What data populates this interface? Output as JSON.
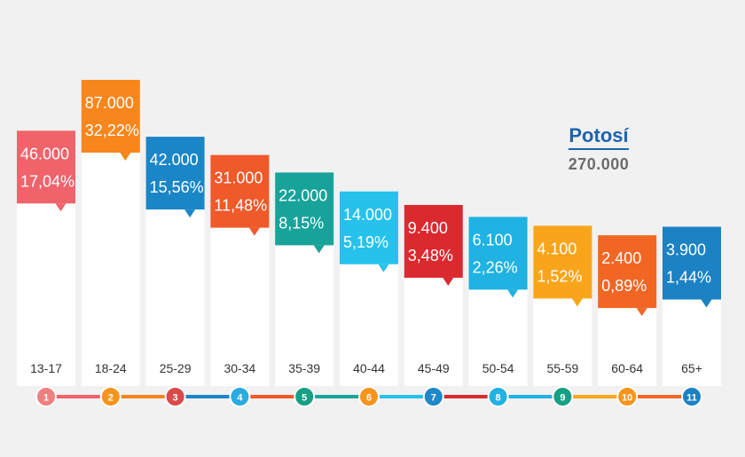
{
  "header": {
    "region": "Potosí",
    "total": "270.000"
  },
  "chart_data": {
    "type": "bar",
    "categories": [
      "13-17",
      "18-24",
      "25-29",
      "30-34",
      "35-39",
      "40-44",
      "45-49",
      "50-54",
      "55-59",
      "60-64",
      "65+"
    ],
    "values": [
      46000,
      87000,
      42000,
      31000,
      22000,
      14000,
      9400,
      6100,
      4100,
      2400,
      3900
    ],
    "value_labels": [
      "46.000",
      "87.000",
      "42.000",
      "31.000",
      "22.000",
      "14.000",
      "9.400",
      "6.100",
      "4.100",
      "2.400",
      "3.900"
    ],
    "percent_labels": [
      "17,04%",
      "32,22%",
      "15,56%",
      "11,48%",
      "8,15%",
      "5,19%",
      "3,48%",
      "2,26%",
      "1,52%",
      "0,89%",
      "1,44%"
    ],
    "step_numbers": [
      "1",
      "2",
      "3",
      "4",
      "5",
      "6",
      "7",
      "8",
      "9",
      "10",
      "11"
    ],
    "colors": [
      "#f0636b",
      "#f7861c",
      "#1a86c7",
      "#f0592a",
      "#17a39a",
      "#26c2ec",
      "#db2a2f",
      "#1fb2e3",
      "#f9a51b",
      "#f26624",
      "#1b82c4"
    ],
    "circle_colors": [
      "#f08080",
      "#f7941d",
      "#d94a4a",
      "#29abe2",
      "#16a085",
      "#f7941d",
      "#1e88c8",
      "#1fb2e3",
      "#16a085",
      "#f7941d",
      "#1b82c4"
    ]
  }
}
